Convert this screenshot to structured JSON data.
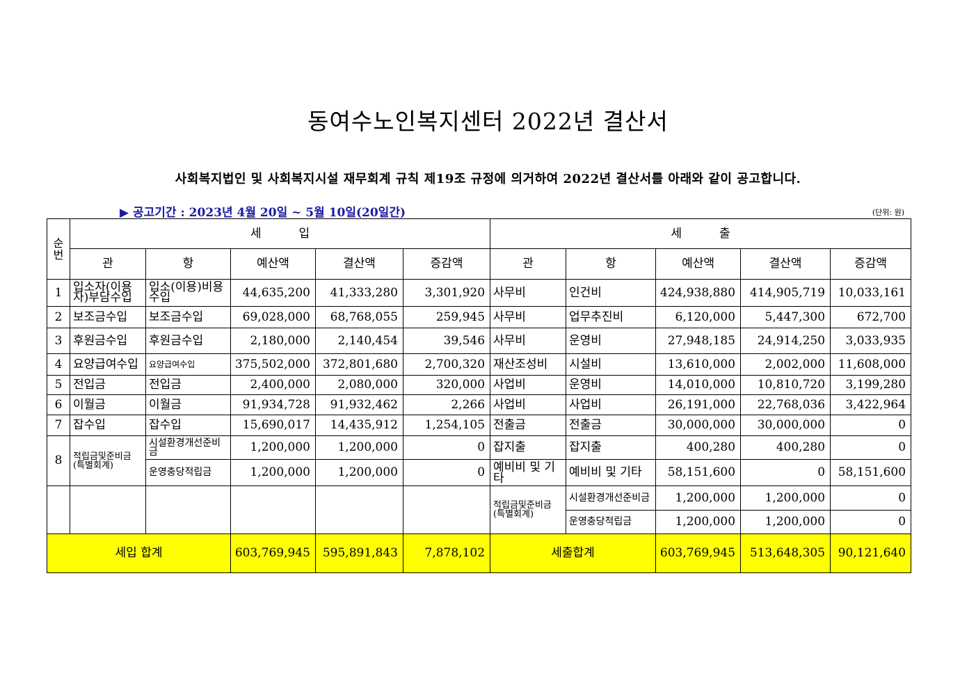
{
  "title": "동여수노인복지센터 2022년 결산서",
  "notice": "사회복지법인 및 사회복지시설 재무회계 규칙 제19조  규정에 의거하여 2022년 결산서를 아래와 같이 공고합니다.",
  "period": "▶ 공고기간 : 2023년 4월 20일 ~ 5월 10일(20일간)",
  "unit": "(단위: 원)",
  "header": {
    "seq": "순번",
    "income": "세          입",
    "expense": "세          출",
    "col_gwan": "관",
    "col_hang": "항",
    "col_budget": "예산액",
    "col_settle": "결산액",
    "col_diff": "증감액"
  },
  "rows": [
    {
      "no": "1",
      "in_gwan": "입소자(이용자)부담수입",
      "in_hang": "입소(이용)비용수입",
      "in_budget": "44,635,200",
      "in_settle": "41,333,280",
      "in_diff": "3,301,920",
      "ex_gwan": "사무비",
      "ex_hang": "인건비",
      "ex_budget": "424,938,880",
      "ex_settle": "414,905,719",
      "ex_diff": "10,033,161"
    },
    {
      "no": "2",
      "in_gwan": "보조금수입",
      "in_hang": "보조금수입",
      "in_budget": "69,028,000",
      "in_settle": "68,768,055",
      "in_diff": "259,945",
      "ex_gwan": "사무비",
      "ex_hang": "업무추진비",
      "ex_budget": "6,120,000",
      "ex_settle": "5,447,300",
      "ex_diff": "672,700"
    },
    {
      "no": "3",
      "in_gwan": "후원금수입",
      "in_hang": "후원금수입",
      "in_budget": "2,180,000",
      "in_settle": "2,140,454",
      "in_diff": "39,546",
      "ex_gwan": "사무비",
      "ex_hang": "운영비",
      "ex_budget": "27,948,185",
      "ex_settle": "24,914,250",
      "ex_diff": "3,033,935"
    },
    {
      "no": "4",
      "in_gwan": "요양급여수입",
      "in_hang": "요양급여수입",
      "in_budget": "375,502,000",
      "in_settle": "372,801,680",
      "in_diff": "2,700,320",
      "ex_gwan": "재산조성비",
      "ex_hang": "시설비",
      "ex_budget": "13,610,000",
      "ex_settle": "2,002,000",
      "ex_diff": "11,608,000"
    },
    {
      "no": "5",
      "in_gwan": "전입금",
      "in_hang": "전입금",
      "in_budget": "2,400,000",
      "in_settle": "2,080,000",
      "in_diff": "320,000",
      "ex_gwan": "사업비",
      "ex_hang": "운영비",
      "ex_budget": "14,010,000",
      "ex_settle": "10,810,720",
      "ex_diff": "3,199,280"
    },
    {
      "no": "6",
      "in_gwan": "이월금",
      "in_hang": "이월금",
      "in_budget": "91,934,728",
      "in_settle": "91,932,462",
      "in_diff": "2,266",
      "ex_gwan": "사업비",
      "ex_hang": "사업비",
      "ex_budget": "26,191,000",
      "ex_settle": "22,768,036",
      "ex_diff": "3,422,964"
    },
    {
      "no": "7",
      "in_gwan": "잡수입",
      "in_hang": "잡수입",
      "in_budget": "15,690,017",
      "in_settle": "14,435,912",
      "in_diff": "1,254,105",
      "ex_gwan": "전출금",
      "ex_hang": "전출금",
      "ex_budget": "30,000,000",
      "ex_settle": "30,000,000",
      "ex_diff": "0"
    }
  ],
  "row8": {
    "no": "8",
    "in_gwan": "적립금및준비금(특별회계)",
    "a": {
      "in_hang": "시설환경개선준비금",
      "in_budget": "1,200,000",
      "in_settle": "1,200,000",
      "in_diff": "0",
      "ex_gwan": "잡지출",
      "ex_hang": "잡지출",
      "ex_budget": "400,280",
      "ex_settle": "400,280",
      "ex_diff": "0"
    },
    "b": {
      "in_hang": "운영충당적립금",
      "in_budget": "1,200,000",
      "in_settle": "1,200,000",
      "in_diff": "0",
      "ex_gwan": "예비비 및 기타",
      "ex_hang": "예비비 및 기타",
      "ex_budget": "58,151,600",
      "ex_settle": "0",
      "ex_diff": "58,151,600"
    }
  },
  "row9": {
    "ex_gwan": "적립금및준비금(특별회계)",
    "a": {
      "ex_hang": "시설환경개선준비금",
      "ex_budget": "1,200,000",
      "ex_settle": "1,200,000",
      "ex_diff": "0"
    },
    "b": {
      "ex_hang": "운영충당적립금",
      "ex_budget": "1,200,000",
      "ex_settle": "1,200,000",
      "ex_diff": "0"
    }
  },
  "total": {
    "in_label": "세입 합계",
    "in_budget": "603,769,945",
    "in_settle": "595,891,843",
    "in_diff": "7,878,102",
    "ex_label": "세출합계",
    "ex_budget": "603,769,945",
    "ex_settle": "513,648,305",
    "ex_diff": "90,121,640"
  },
  "colors": {
    "total_bg": "#ffff00",
    "period_text": "#1a1aa6"
  }
}
